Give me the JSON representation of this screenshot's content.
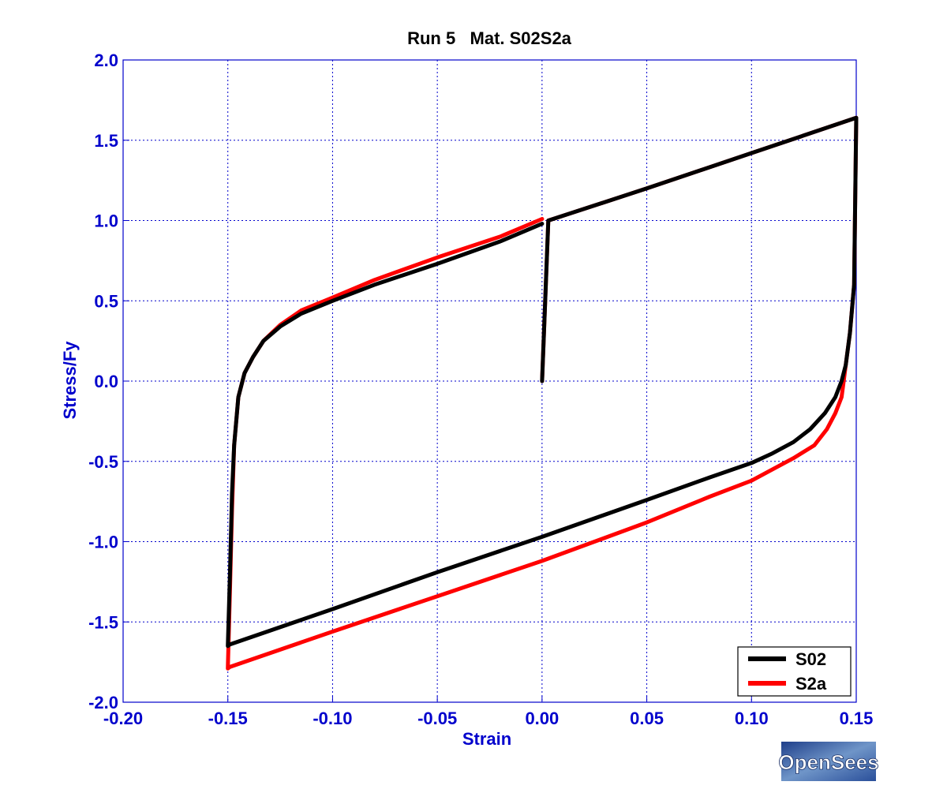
{
  "chart_data": {
    "type": "line",
    "title": "Run 5   Mat. S02S2a",
    "xlabel": "Strain",
    "ylabel": "Stress/Fy",
    "xlim": [
      -0.2,
      0.15
    ],
    "ylim": [
      -2.0,
      2.0
    ],
    "xticks": [
      -0.2,
      -0.15,
      -0.1,
      -0.05,
      0.0,
      0.05,
      0.1,
      0.15
    ],
    "xtick_labels": [
      "-0.20",
      "-0.15",
      "-0.10",
      "-0.05",
      "0.00",
      "0.05",
      "0.10",
      "0.15"
    ],
    "yticks": [
      -2.0,
      -1.5,
      -1.0,
      -0.5,
      0.0,
      0.5,
      1.0,
      1.5,
      2.0
    ],
    "ytick_labels": [
      "-2.0",
      "-1.5",
      "-1.0",
      "-0.5",
      "0.0",
      "0.5",
      "1.0",
      "1.5",
      "2.0"
    ],
    "grid": true,
    "legend_position": "bottom-right",
    "series": [
      {
        "name": "S02",
        "color": "#000000",
        "points": [
          [
            0.0,
            0.0
          ],
          [
            0.003,
            1.0
          ],
          [
            0.05,
            1.2
          ],
          [
            0.1,
            1.42
          ],
          [
            0.15,
            1.64
          ],
          [
            0.149,
            0.6
          ],
          [
            0.147,
            0.3
          ],
          [
            0.145,
            0.1
          ],
          [
            0.143,
            0.0
          ],
          [
            0.14,
            -0.1
          ],
          [
            0.135,
            -0.2
          ],
          [
            0.128,
            -0.3
          ],
          [
            0.12,
            -0.38
          ],
          [
            0.11,
            -0.45
          ],
          [
            0.1,
            -0.51
          ],
          [
            0.08,
            -0.6
          ],
          [
            0.05,
            -0.74
          ],
          [
            0.0,
            -0.97
          ],
          [
            -0.05,
            -1.19
          ],
          [
            -0.1,
            -1.42
          ],
          [
            -0.149,
            -1.64
          ],
          [
            -0.15,
            -1.65
          ],
          [
            -0.149,
            -1.2
          ],
          [
            -0.148,
            -0.7
          ],
          [
            -0.147,
            -0.4
          ],
          [
            -0.145,
            -0.1
          ],
          [
            -0.142,
            0.05
          ],
          [
            -0.138,
            0.15
          ],
          [
            -0.133,
            0.25
          ],
          [
            -0.125,
            0.34
          ],
          [
            -0.115,
            0.42
          ],
          [
            -0.1,
            0.5
          ],
          [
            -0.08,
            0.6
          ],
          [
            -0.05,
            0.73
          ],
          [
            -0.02,
            0.87
          ],
          [
            0.0,
            0.98
          ]
        ]
      },
      {
        "name": "S2a",
        "color": "#ff0000",
        "points": [
          [
            0.0,
            0.0
          ],
          [
            0.003,
            1.0
          ],
          [
            0.05,
            1.2
          ],
          [
            0.1,
            1.42
          ],
          [
            0.15,
            1.64
          ],
          [
            0.149,
            0.6
          ],
          [
            0.147,
            0.3
          ],
          [
            0.145,
            0.1
          ],
          [
            0.144,
            0.0
          ],
          [
            0.143,
            -0.1
          ],
          [
            0.14,
            -0.2
          ],
          [
            0.136,
            -0.3
          ],
          [
            0.13,
            -0.4
          ],
          [
            0.12,
            -0.48
          ],
          [
            0.11,
            -0.55
          ],
          [
            0.1,
            -0.62
          ],
          [
            0.08,
            -0.72
          ],
          [
            0.05,
            -0.88
          ],
          [
            0.0,
            -1.12
          ],
          [
            -0.05,
            -1.34
          ],
          [
            -0.1,
            -1.56
          ],
          [
            -0.149,
            -1.78
          ],
          [
            -0.15,
            -1.79
          ],
          [
            -0.149,
            -1.3
          ],
          [
            -0.148,
            -0.8
          ],
          [
            -0.147,
            -0.4
          ],
          [
            -0.145,
            -0.1
          ],
          [
            -0.142,
            0.05
          ],
          [
            -0.138,
            0.15
          ],
          [
            -0.133,
            0.25
          ],
          [
            -0.125,
            0.35
          ],
          [
            -0.115,
            0.44
          ],
          [
            -0.1,
            0.52
          ],
          [
            -0.08,
            0.63
          ],
          [
            -0.05,
            0.77
          ],
          [
            -0.02,
            0.9
          ],
          [
            0.0,
            1.01
          ]
        ]
      }
    ]
  },
  "logo": {
    "text": "OpenSees"
  }
}
